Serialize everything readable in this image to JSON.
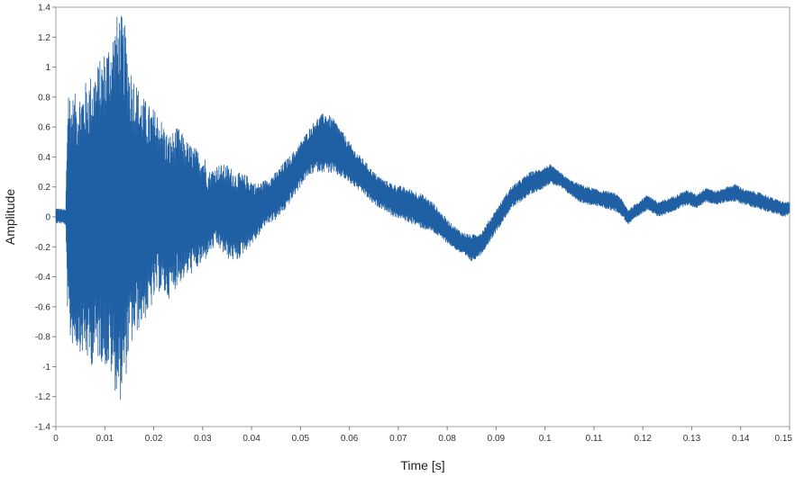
{
  "chart_data": {
    "type": "line",
    "title": "",
    "xlabel": "Time [s]",
    "ylabel": "Amplitude",
    "xlim": [
      0,
      0.15
    ],
    "ylim": [
      -1.4,
      1.4
    ],
    "x_ticks": [
      "0",
      "0.01",
      "0.02",
      "0.03",
      "0.04",
      "0.05",
      "0.06",
      "0.07",
      "0.08",
      "0.09",
      "0.1",
      "0.11",
      "0.12",
      "0.13",
      "0.14",
      "0.15"
    ],
    "y_ticks": [
      "-1.4",
      "-1.2",
      "-1",
      "-0.8",
      "-0.6",
      "-0.4",
      "-0.2",
      "0",
      "0.2",
      "0.4",
      "0.6",
      "0.8",
      "1",
      "1.2",
      "1.4"
    ],
    "grid": false,
    "legend": "none",
    "series": [
      {
        "color": "#1f5fa3",
        "envelope": {
          "x": [
            0,
            0.002,
            0.0025,
            0.003,
            0.005,
            0.007,
            0.009,
            0.011,
            0.0125,
            0.013,
            0.014,
            0.015,
            0.017,
            0.019,
            0.021,
            0.023,
            0.025,
            0.027,
            0.029,
            0.0305,
            0.031,
            0.033,
            0.035,
            0.037,
            0.039,
            0.041,
            0.043,
            0.045,
            0.047,
            0.049,
            0.051,
            0.053,
            0.055,
            0.057,
            0.059,
            0.061,
            0.063,
            0.065,
            0.067,
            0.069,
            0.071,
            0.073,
            0.075,
            0.077,
            0.079,
            0.081,
            0.083,
            0.085,
            0.087,
            0.089,
            0.091,
            0.093,
            0.095,
            0.097,
            0.099,
            0.101,
            0.103,
            0.105,
            0.107,
            0.109,
            0.111,
            0.113,
            0.115,
            0.117,
            0.119,
            0.121,
            0.123,
            0.125,
            0.127,
            0.129,
            0.131,
            0.133,
            0.135,
            0.137,
            0.139,
            0.141,
            0.143,
            0.145,
            0.147,
            0.149,
            0.15
          ],
          "max": [
            0.06,
            0.05,
            0.95,
            0.8,
            0.85,
            0.95,
            1.05,
            1.2,
            1.35,
            1.38,
            1.3,
            1.05,
            0.85,
            0.75,
            0.7,
            0.55,
            0.6,
            0.5,
            0.45,
            0.4,
            0.3,
            0.35,
            0.35,
            0.3,
            0.28,
            0.22,
            0.25,
            0.3,
            0.38,
            0.45,
            0.55,
            0.65,
            0.7,
            0.65,
            0.55,
            0.45,
            0.38,
            0.3,
            0.25,
            0.22,
            0.2,
            0.18,
            0.15,
            0.1,
            0.02,
            -0.05,
            -0.1,
            -0.12,
            -0.1,
            0.0,
            0.1,
            0.2,
            0.25,
            0.3,
            0.32,
            0.35,
            0.3,
            0.25,
            0.22,
            0.2,
            0.18,
            0.17,
            0.15,
            0.05,
            0.1,
            0.15,
            0.1,
            0.12,
            0.15,
            0.18,
            0.15,
            0.2,
            0.17,
            0.2,
            0.22,
            0.18,
            0.17,
            0.15,
            0.12,
            0.1,
            0.1
          ],
          "min": [
            -0.04,
            -0.05,
            -0.8,
            -0.85,
            -0.9,
            -1.0,
            -0.95,
            -1.05,
            -1.2,
            -1.25,
            -1.15,
            -0.9,
            -0.75,
            -0.65,
            -0.5,
            -0.55,
            -0.45,
            -0.4,
            -0.35,
            -0.3,
            -0.25,
            -0.2,
            -0.28,
            -0.3,
            -0.22,
            -0.15,
            -0.05,
            -0.02,
            0.05,
            0.15,
            0.25,
            0.3,
            0.3,
            0.28,
            0.25,
            0.2,
            0.15,
            0.08,
            0.05,
            0.0,
            -0.02,
            -0.05,
            -0.08,
            -0.1,
            -0.15,
            -0.2,
            -0.25,
            -0.3,
            -0.25,
            -0.15,
            -0.05,
            0.05,
            0.1,
            0.15,
            0.18,
            0.22,
            0.2,
            0.15,
            0.1,
            0.08,
            0.07,
            0.05,
            0.03,
            -0.05,
            0.0,
            0.05,
            0.0,
            0.02,
            0.05,
            0.08,
            0.06,
            0.1,
            0.08,
            0.1,
            0.1,
            0.08,
            0.06,
            0.04,
            0.02,
            0.0,
            0.02
          ]
        }
      }
    ]
  }
}
